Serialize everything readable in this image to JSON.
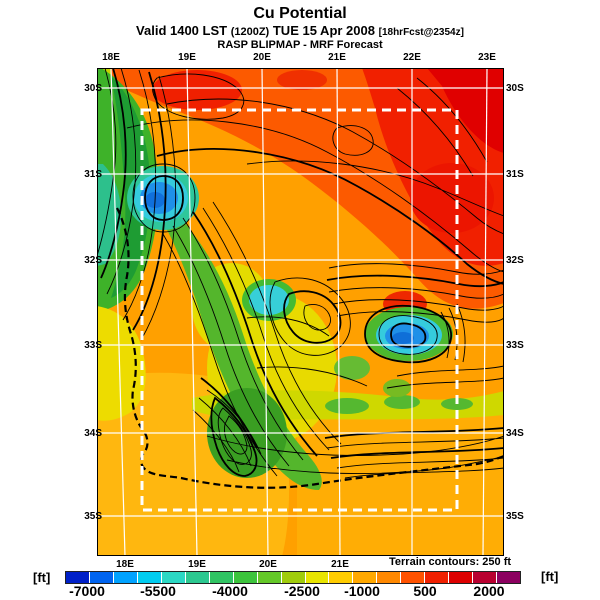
{
  "header": {
    "title": "Cu Potential",
    "valid_main": "Valid 1400 LST",
    "valid_zulu": "(1200Z)",
    "valid_date": "TUE 15 Apr 2008",
    "valid_fcst": "[18hrFcst@2354z]",
    "model_line": "RASP BLIPMAP - MRF Forecast"
  },
  "map": {
    "lon_labels_top": [
      "18E",
      "19E",
      "20E",
      "21E",
      "22E",
      "23E"
    ],
    "lon_labels_bottom": [
      "18E",
      "19E",
      "20E",
      "21E"
    ],
    "lat_labels_left": [
      "30S",
      "31S",
      "32S",
      "33S",
      "34S",
      "35S"
    ],
    "lat_labels_right": [
      "30S",
      "31S",
      "32S",
      "33S",
      "34S",
      "35S"
    ],
    "terrain_note": "Terrain contours: 250 ft"
  },
  "colorbar": {
    "unit_left": "[ft]",
    "unit_right": "[ft]",
    "ticks": [
      "-7000",
      "-5500",
      "-4000",
      "-2500",
      "-1000",
      "500",
      "2000"
    ],
    "segment_colors": [
      "#0020c8",
      "#0064f0",
      "#00a2ff",
      "#00ccf0",
      "#2cd8c4",
      "#2cc890",
      "#30c463",
      "#3cc43c",
      "#64c828",
      "#a0cc0c",
      "#e8e400",
      "#ffcc00",
      "#ffa800",
      "#ff8800",
      "#ff5200",
      "#f02000",
      "#dd0000",
      "#b80030",
      "#8c0060"
    ]
  },
  "chart_data": {
    "type": "heatmap",
    "title": "Cu Potential",
    "valid": "1400 LST (1200Z) TUE 15 Apr 2008",
    "forecast_cycle": "18hrFcst@2354z",
    "source": "RASP BLIPMAP - MRF Forecast",
    "x_ticks": [
      "18E",
      "19E",
      "20E",
      "21E",
      "22E",
      "23E"
    ],
    "y_ticks": [
      "30S",
      "31S",
      "32S",
      "33S",
      "34S",
      "35S"
    ],
    "colorbar_unit": "ft",
    "colorbar_ticks": [
      -7000,
      -5500,
      -4000,
      -2500,
      -1000,
      500,
      2000
    ],
    "terrain_contour_interval_ft": 250,
    "legend_position": "bottom",
    "grid": "white graticule, dashed white inner domain box"
  }
}
